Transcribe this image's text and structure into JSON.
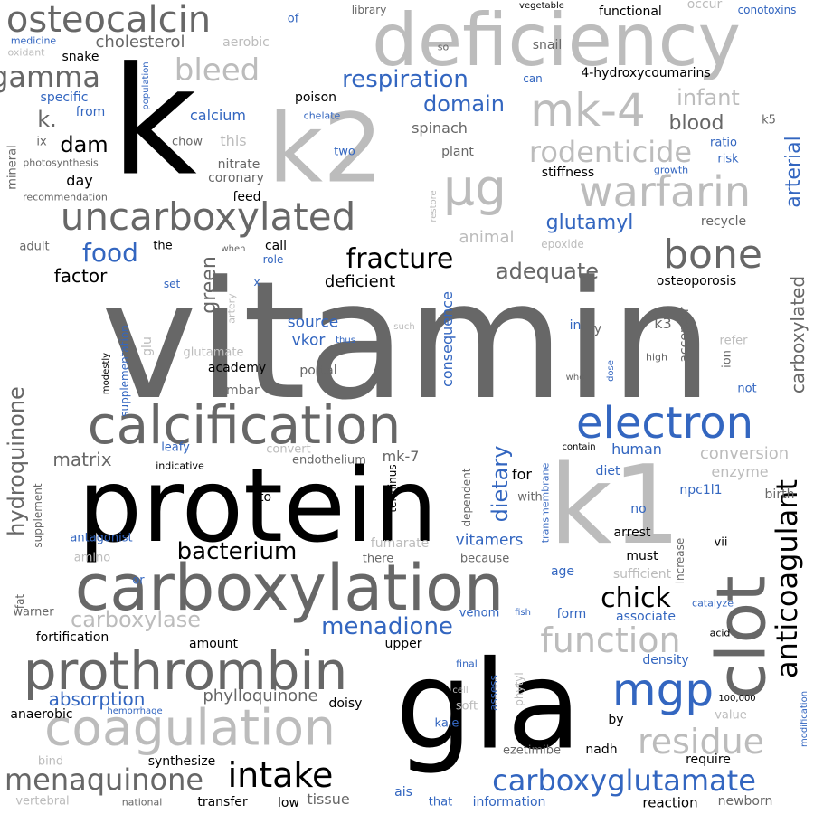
{
  "colors": {
    "black": "#000000",
    "dark_gray": "#676767",
    "light_gray": "#bcbcbc",
    "blue": "#3366c0"
  },
  "words": [
    {
      "t": "vitamin",
      "c": "dark_gray",
      "o": "h"
    },
    {
      "t": "k",
      "c": "black",
      "o": "h"
    },
    {
      "t": "gla",
      "c": "black",
      "o": "h"
    },
    {
      "t": "protein",
      "c": "black",
      "o": "h"
    },
    {
      "t": "k1",
      "c": "light_gray",
      "o": "h"
    },
    {
      "t": "k2",
      "c": "light_gray",
      "o": "h"
    },
    {
      "t": "deficiency",
      "c": "light_gray",
      "o": "h"
    },
    {
      "t": "carboxylation",
      "c": "dark_gray",
      "o": "h"
    },
    {
      "t": "clot",
      "c": "dark_gray",
      "o": "v"
    },
    {
      "t": "calcification",
      "c": "dark_gray",
      "o": "h"
    },
    {
      "t": "prothrombin",
      "c": "dark_gray",
      "o": "h"
    },
    {
      "t": "coagulation",
      "c": "light_gray",
      "o": "h"
    },
    {
      "t": "uncarboxylated",
      "c": "dark_gray",
      "o": "h"
    },
    {
      "t": "µg",
      "c": "light_gray",
      "o": "h"
    },
    {
      "t": "warfarin",
      "c": "light_gray",
      "o": "h"
    },
    {
      "t": "mk-4",
      "c": "light_gray",
      "o": "h"
    },
    {
      "t": "electron",
      "c": "blue",
      "o": "h"
    },
    {
      "t": "mgp",
      "c": "blue",
      "o": "h"
    },
    {
      "t": "bone",
      "c": "dark_gray",
      "o": "h"
    },
    {
      "t": "osteocalcin",
      "c": "dark_gray",
      "o": "h"
    },
    {
      "t": "carboxyglutamate",
      "c": "blue",
      "o": "h"
    },
    {
      "t": "intake",
      "c": "black",
      "o": "h"
    },
    {
      "t": "anticoagulant",
      "c": "black",
      "o": "v"
    },
    {
      "t": "residue",
      "c": "light_gray",
      "o": "h"
    },
    {
      "t": "function",
      "c": "light_gray",
      "o": "h"
    },
    {
      "t": "menaquinone",
      "c": "dark_gray",
      "o": "h"
    },
    {
      "t": "rodenticide",
      "c": "light_gray",
      "o": "h"
    },
    {
      "t": "fracture",
      "c": "black",
      "o": "h"
    },
    {
      "t": "bleed",
      "c": "light_gray",
      "o": "h"
    },
    {
      "t": "gamma",
      "c": "dark_gray",
      "o": "h"
    },
    {
      "t": "respiration",
      "c": "blue",
      "o": "h"
    },
    {
      "t": "menadione",
      "c": "blue",
      "o": "h"
    },
    {
      "t": "chick",
      "c": "black",
      "o": "h"
    },
    {
      "t": "bacterium",
      "c": "black",
      "o": "h"
    },
    {
      "t": "carboxylase",
      "c": "light_gray",
      "o": "h"
    },
    {
      "t": "hydroquinone",
      "c": "dark_gray",
      "o": "v"
    },
    {
      "t": "domain",
      "c": "blue",
      "o": "h"
    },
    {
      "t": "glutamyl",
      "c": "blue",
      "o": "h"
    },
    {
      "t": "food",
      "c": "blue",
      "o": "h"
    },
    {
      "t": "adequate",
      "c": "dark_gray",
      "o": "h"
    },
    {
      "t": "dietary",
      "c": "blue",
      "o": "v"
    },
    {
      "t": "arterial",
      "c": "blue",
      "o": "v"
    },
    {
      "t": "carboxylated",
      "c": "dark_gray",
      "o": "v"
    },
    {
      "t": "infant",
      "c": "light_gray",
      "o": "h"
    },
    {
      "t": "blood",
      "c": "dark_gray",
      "o": "h"
    },
    {
      "t": "green",
      "c": "dark_gray",
      "o": "v"
    },
    {
      "t": "dam",
      "c": "black",
      "o": "h"
    },
    {
      "t": "k.",
      "c": "dark_gray",
      "o": "h"
    },
    {
      "t": "absorption",
      "c": "blue",
      "o": "h"
    },
    {
      "t": "phylloquinone",
      "c": "dark_gray",
      "o": "h"
    },
    {
      "t": "matrix",
      "c": "dark_gray",
      "o": "h"
    },
    {
      "t": "factor",
      "c": "black",
      "o": "h"
    },
    {
      "t": "cholesterol",
      "c": "dark_gray",
      "o": "h"
    },
    {
      "t": "animal",
      "c": "light_gray",
      "o": "h"
    },
    {
      "t": "deficient",
      "c": "black",
      "o": "h"
    },
    {
      "t": "source",
      "c": "blue",
      "o": "h"
    },
    {
      "t": "vkor",
      "c": "blue",
      "o": "h"
    },
    {
      "t": "vitamers",
      "c": "blue",
      "o": "h"
    },
    {
      "t": "human",
      "c": "blue",
      "o": "h"
    },
    {
      "t": "conversion",
      "c": "light_gray",
      "o": "h"
    },
    {
      "t": "enzyme",
      "c": "light_gray",
      "o": "h"
    },
    {
      "t": "calcium",
      "c": "blue",
      "o": "h"
    },
    {
      "t": "day",
      "c": "black",
      "o": "h"
    },
    {
      "t": "spinach",
      "c": "dark_gray",
      "o": "h"
    },
    {
      "t": "plant",
      "c": "dark_gray",
      "o": "h"
    },
    {
      "t": "this",
      "c": "light_gray",
      "o": "h"
    },
    {
      "t": "mk-7",
      "c": "dark_gray",
      "o": "h"
    },
    {
      "t": "consequence",
      "c": "blue",
      "o": "v"
    },
    {
      "t": "fortification",
      "c": "black",
      "o": "h"
    },
    {
      "t": "snake",
      "c": "black",
      "o": "h"
    },
    {
      "t": "poison",
      "c": "black",
      "o": "h"
    },
    {
      "t": "nitrate",
      "c": "dark_gray",
      "o": "h"
    },
    {
      "t": "coronary",
      "c": "dark_gray",
      "o": "h"
    },
    {
      "t": "specific",
      "c": "blue",
      "o": "h"
    },
    {
      "t": "from",
      "c": "blue",
      "o": "h"
    },
    {
      "t": "feed",
      "c": "black",
      "o": "h"
    },
    {
      "t": "call",
      "c": "black",
      "o": "h"
    },
    {
      "t": "academy",
      "c": "black",
      "o": "h"
    },
    {
      "t": "lumbar",
      "c": "dark_gray",
      "o": "h"
    },
    {
      "t": "portal",
      "c": "dark_gray",
      "o": "h"
    },
    {
      "t": "osteoporosis",
      "c": "black",
      "o": "h"
    },
    {
      "t": "k3",
      "c": "dark_gray",
      "o": "h"
    },
    {
      "t": "acceptor",
      "c": "dark_gray",
      "o": "v"
    },
    {
      "t": "stiffness",
      "c": "black",
      "o": "h"
    },
    {
      "t": "recycle",
      "c": "dark_gray",
      "o": "h"
    },
    {
      "t": "4-hydroxycoumarins",
      "c": "black",
      "o": "h"
    },
    {
      "t": "snail",
      "c": "dark_gray",
      "o": "h"
    },
    {
      "t": "functional",
      "c": "black",
      "o": "h"
    },
    {
      "t": "conotoxins",
      "c": "blue",
      "o": "h"
    },
    {
      "t": "occur",
      "c": "light_gray",
      "o": "h"
    },
    {
      "t": "library",
      "c": "dark_gray",
      "o": "h"
    },
    {
      "t": "vegetable",
      "c": "black",
      "o": "h"
    },
    {
      "t": "aerobic",
      "c": "light_gray",
      "o": "h"
    },
    {
      "t": "of",
      "c": "blue",
      "o": "h"
    },
    {
      "t": "so",
      "c": "dark_gray",
      "o": "h"
    },
    {
      "t": "can",
      "c": "blue",
      "o": "h"
    },
    {
      "t": "medicine",
      "c": "blue",
      "o": "h"
    },
    {
      "t": "oxidant",
      "c": "light_gray",
      "o": "h"
    },
    {
      "t": "population",
      "c": "blue",
      "o": "v"
    },
    {
      "t": "chelate",
      "c": "blue",
      "o": "h"
    },
    {
      "t": "two",
      "c": "blue",
      "o": "h"
    },
    {
      "t": "ix",
      "c": "dark_gray",
      "o": "h"
    },
    {
      "t": "chow",
      "c": "dark_gray",
      "o": "h"
    },
    {
      "t": "photosynthesis",
      "c": "dark_gray",
      "o": "h"
    },
    {
      "t": "recommendation",
      "c": "dark_gray",
      "o": "h"
    },
    {
      "t": "mineral",
      "c": "dark_gray",
      "o": "v"
    },
    {
      "t": "ratio",
      "c": "blue",
      "o": "h"
    },
    {
      "t": "risk",
      "c": "blue",
      "o": "h"
    },
    {
      "t": "growth",
      "c": "blue",
      "o": "h"
    },
    {
      "t": "k5",
      "c": "dark_gray",
      "o": "h"
    },
    {
      "t": "restore",
      "c": "light_gray",
      "o": "v"
    },
    {
      "t": "adult",
      "c": "dark_gray",
      "o": "h"
    },
    {
      "t": "the",
      "c": "black",
      "o": "h"
    },
    {
      "t": "when",
      "c": "dark_gray",
      "o": "h"
    },
    {
      "t": "role",
      "c": "blue",
      "o": "h"
    },
    {
      "t": "epoxide",
      "c": "light_gray",
      "o": "h"
    },
    {
      "t": "set",
      "c": "blue",
      "o": "h"
    },
    {
      "t": "x",
      "c": "blue",
      "o": "h"
    },
    {
      "t": "artery",
      "c": "light_gray",
      "o": "v"
    },
    {
      "t": "glu",
      "c": "light_gray",
      "o": "v"
    },
    {
      "t": "glutamate",
      "c": "light_gray",
      "o": "h"
    },
    {
      "t": "such",
      "c": "light_gray",
      "o": "h"
    },
    {
      "t": "thus",
      "c": "blue",
      "o": "h"
    },
    {
      "t": "in",
      "c": "blue",
      "o": "h"
    },
    {
      "t": "y",
      "c": "dark_gray",
      "o": "h"
    },
    {
      "t": "refer",
      "c": "light_gray",
      "o": "h"
    },
    {
      "t": "ion",
      "c": "dark_gray",
      "o": "v"
    },
    {
      "t": "high",
      "c": "dark_gray",
      "o": "h"
    },
    {
      "t": "dose",
      "c": "blue",
      "o": "v"
    },
    {
      "t": "who",
      "c": "dark_gray",
      "o": "h"
    },
    {
      "t": "not",
      "c": "blue",
      "o": "h"
    },
    {
      "t": "modestly",
      "c": "black",
      "o": "v"
    },
    {
      "t": "supplementation",
      "c": "blue",
      "o": "v"
    },
    {
      "t": "leafy",
      "c": "blue",
      "o": "h"
    },
    {
      "t": "indicative",
      "c": "black",
      "o": "h"
    },
    {
      "t": "convert",
      "c": "light_gray",
      "o": "h"
    },
    {
      "t": "endothelium",
      "c": "dark_gray",
      "o": "h"
    },
    {
      "t": "terminus",
      "c": "black",
      "o": "v"
    },
    {
      "t": "dependent",
      "c": "dark_gray",
      "o": "v"
    },
    {
      "t": "transmembrane",
      "c": "blue",
      "o": "v"
    },
    {
      "t": "contain",
      "c": "black",
      "o": "h"
    },
    {
      "t": "diet",
      "c": "blue",
      "o": "h"
    },
    {
      "t": "npc1l1",
      "c": "blue",
      "o": "h"
    },
    {
      "t": "birth",
      "c": "dark_gray",
      "o": "h"
    },
    {
      "t": "for",
      "c": "black",
      "o": "h"
    },
    {
      "t": "with",
      "c": "dark_gray",
      "o": "h"
    },
    {
      "t": "to",
      "c": "black",
      "o": "h"
    },
    {
      "t": "no",
      "c": "blue",
      "o": "h"
    },
    {
      "t": "arrest",
      "c": "black",
      "o": "h"
    },
    {
      "t": "must",
      "c": "black",
      "o": "h"
    },
    {
      "t": "vii",
      "c": "black",
      "o": "h"
    },
    {
      "t": "increase",
      "c": "dark_gray",
      "o": "v"
    },
    {
      "t": "supplement",
      "c": "dark_gray",
      "o": "v"
    },
    {
      "t": "antagonist",
      "c": "blue",
      "o": "h"
    },
    {
      "t": "amino",
      "c": "light_gray",
      "o": "h"
    },
    {
      "t": "fumarate",
      "c": "light_gray",
      "o": "h"
    },
    {
      "t": "there",
      "c": "dark_gray",
      "o": "h"
    },
    {
      "t": "because",
      "c": "dark_gray",
      "o": "h"
    },
    {
      "t": "age",
      "c": "blue",
      "o": "h"
    },
    {
      "t": "sufficient",
      "c": "light_gray",
      "o": "h"
    },
    {
      "t": "catalyze",
      "c": "blue",
      "o": "h"
    },
    {
      "t": "or",
      "c": "blue",
      "o": "h"
    },
    {
      "t": "fat",
      "c": "dark_gray",
      "o": "v"
    },
    {
      "t": "warner",
      "c": "dark_gray",
      "o": "h"
    },
    {
      "t": "venom",
      "c": "blue",
      "o": "h"
    },
    {
      "t": "fish",
      "c": "blue",
      "o": "h"
    },
    {
      "t": "form",
      "c": "blue",
      "o": "h"
    },
    {
      "t": "associate",
      "c": "blue",
      "o": "h"
    },
    {
      "t": "acid",
      "c": "black",
      "o": "h"
    },
    {
      "t": "amount",
      "c": "black",
      "o": "h"
    },
    {
      "t": "upper",
      "c": "black",
      "o": "h"
    },
    {
      "t": "final",
      "c": "blue",
      "o": "h"
    },
    {
      "t": "density",
      "c": "blue",
      "o": "h"
    },
    {
      "t": "cell",
      "c": "light_gray",
      "o": "h"
    },
    {
      "t": "soft",
      "c": "light_gray",
      "o": "h"
    },
    {
      "t": "assess",
      "c": "blue",
      "o": "v"
    },
    {
      "t": "phytyl",
      "c": "light_gray",
      "o": "v"
    },
    {
      "t": "100,000",
      "c": "black",
      "o": "h"
    },
    {
      "t": "value",
      "c": "light_gray",
      "o": "h"
    },
    {
      "t": "by",
      "c": "black",
      "o": "h"
    },
    {
      "t": "modification",
      "c": "blue",
      "o": "v"
    },
    {
      "t": "doisy",
      "c": "black",
      "o": "h"
    },
    {
      "t": "kale",
      "c": "blue",
      "o": "h"
    },
    {
      "t": "anaerobic",
      "c": "black",
      "o": "h"
    },
    {
      "t": "hemorrhage",
      "c": "blue",
      "o": "h"
    },
    {
      "t": "bind",
      "c": "light_gray",
      "o": "h"
    },
    {
      "t": "synthesize",
      "c": "black",
      "o": "h"
    },
    {
      "t": "ezetimibe",
      "c": "dark_gray",
      "o": "h"
    },
    {
      "t": "nadh",
      "c": "black",
      "o": "h"
    },
    {
      "t": "require",
      "c": "black",
      "o": "h"
    },
    {
      "t": "vertebral",
      "c": "light_gray",
      "o": "h"
    },
    {
      "t": "national",
      "c": "dark_gray",
      "o": "h"
    },
    {
      "t": "transfer",
      "c": "black",
      "o": "h"
    },
    {
      "t": "low",
      "c": "black",
      "o": "h"
    },
    {
      "t": "tissue",
      "c": "dark_gray",
      "o": "h"
    },
    {
      "t": "ais",
      "c": "blue",
      "o": "h"
    },
    {
      "t": "that",
      "c": "blue",
      "o": "h"
    },
    {
      "t": "information",
      "c": "blue",
      "o": "h"
    },
    {
      "t": "reaction",
      "c": "black",
      "o": "h"
    },
    {
      "t": "newborn",
      "c": "dark_gray",
      "o": "h"
    }
  ]
}
